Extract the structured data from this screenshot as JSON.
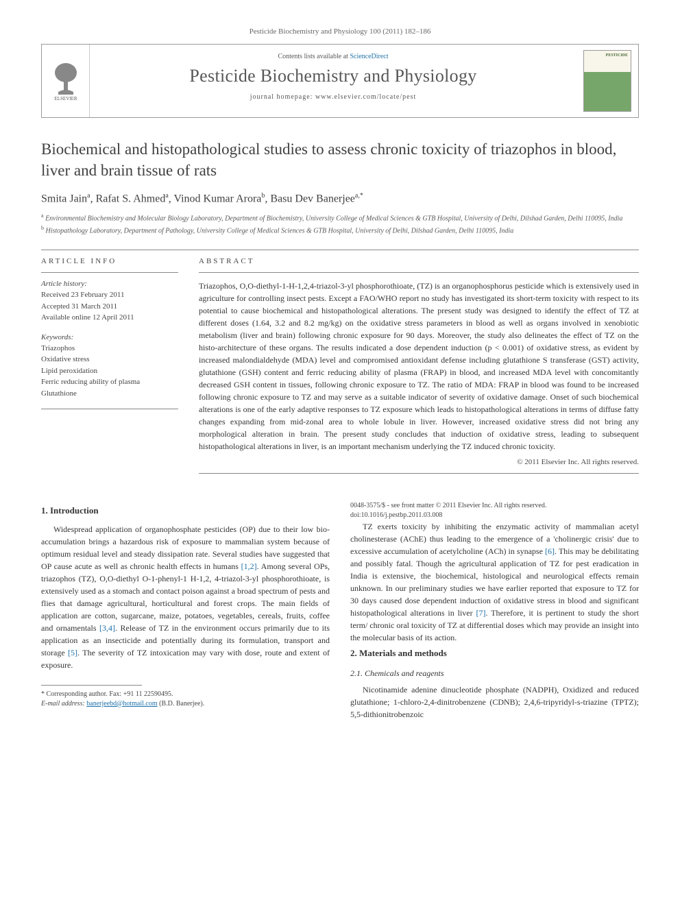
{
  "journal_ref": "Pesticide Biochemistry and Physiology 100 (2011) 182–186",
  "header": {
    "contents_prefix": "Contents lists available at ",
    "contents_link": "ScienceDirect",
    "journal_name": "Pesticide Biochemistry and Physiology",
    "homepage_prefix": "journal homepage: ",
    "homepage_url": "www.elsevier.com/locate/pest",
    "publisher_logo_color": "#e9711c",
    "cover_top_color": "#f8f5ea",
    "cover_bottom_color": "#77a66a"
  },
  "title": "Biochemical and histopathological studies to assess chronic toxicity of triazophos in blood, liver and brain tissue of rats",
  "authors_html": "Smita Jain<sup>a</sup>, Rafat S. Ahmed<sup>a</sup>, Vinod Kumar Arora<sup>b</sup>, Basu Dev Banerjee<sup>a,*</sup>",
  "affiliations": [
    {
      "sup": "a",
      "text": "Environmental Biochemistry and Molecular Biology Laboratory, Department of Biochemistry, University College of Medical Sciences & GTB Hospital, University of Delhi, Dilshad Garden, Delhi 110095, India"
    },
    {
      "sup": "b",
      "text": "Histopathology Laboratory, Department of Pathology, University College of Medical Sciences & GTB Hospital, University of Delhi, Dilshad Garden, Delhi 110095, India"
    }
  ],
  "article_info": {
    "head": "ARTICLE INFO",
    "history_head": "Article history:",
    "history": [
      "Received 23 February 2011",
      "Accepted 31 March 2011",
      "Available online 12 April 2011"
    ],
    "keywords_head": "Keywords:",
    "keywords": [
      "Triazophos",
      "Oxidative stress",
      "Lipid peroxidation",
      "Ferric reducing ability of plasma",
      "Glutathione"
    ]
  },
  "abstract": {
    "head": "ABSTRACT",
    "text": "Triazophos, O,O-diethyl-1-H-1,2,4-triazol-3-yl phosphorothioate, (TZ) is an organophosphorus pesticide which is extensively used in agriculture for controlling insect pests. Except a FAO/WHO report no study has investigated its short-term toxicity with respect to its potential to cause biochemical and histopathological alterations. The present study was designed to identify the effect of TZ at different doses (1.64, 3.2 and 8.2 mg/kg) on the oxidative stress parameters in blood as well as organs involved in xenobiotic metabolism (liver and brain) following chronic exposure for 90 days. Moreover, the study also delineates the effect of TZ on the histo-architecture of these organs. The results indicated a dose dependent induction (p < 0.001) of oxidative stress, as evident by increased malondialdehyde (MDA) level and compromised antioxidant defense including glutathione S transferase (GST) activity, glutathione (GSH) content and ferric reducing ability of plasma (FRAP) in blood, and increased MDA level with concomitantly decreased GSH content in tissues, following chronic exposure to TZ. The ratio of MDA: FRAP in blood was found to be increased following chronic exposure to TZ and may serve as a suitable indicator of severity of oxidative damage. Onset of such biochemical alterations is one of the early adaptive responses to TZ exposure which leads to histopathological alterations in terms of diffuse fatty changes expanding from mid-zonal area to whole lobule in liver. However, increased oxidative stress did not bring any morphological alteration in brain. The present study concludes that induction of oxidative stress, leading to subsequent histopathological alterations in liver, is an important mechanism underlying the TZ induced chronic toxicity.",
    "copyright": "© 2011 Elsevier Inc. All rights reserved."
  },
  "sections": {
    "intro_head": "1. Introduction",
    "intro_p1": "Widespread application of organophosphate pesticides (OP) due to their low bio-accumulation brings a hazardous risk of exposure to mammalian system because of optimum residual level and steady dissipation rate. Several studies have suggested that OP cause acute as well as chronic health effects in humans [1,2]. Among several OPs, triazophos (TZ), O,O-diethyl O-1-phenyl-1 H-1,2, 4-triazol-3-yl phosphorothioate, is extensively used as a stomach and contact poison against a broad spectrum of pests and flies that damage agricultural, horticultural and forest crops. The main fields of application are cotton, sugarcane, maize, potatoes, vegetables, cereals, fruits, coffee and ornamentals [3,4]. Release of TZ in the environment occurs primarily due to its application as an insecticide and potentially during its formulation, transport and storage [5]. The severity of TZ intoxication may vary with dose, route and extent of exposure.",
    "intro_p2": "TZ exerts toxicity by inhibiting the enzymatic activity of mammalian acetyl cholinesterase (AChE) thus leading to the emergence of a 'cholinergic crisis' due to excessive accumulation of acetylcholine (ACh) in synapse [6]. This may be debilitating and possibly fatal. Though the agricultural application of TZ for pest eradication in India is extensive, the biochemical, histological and neurological effects remain unknown. In our preliminary studies we have earlier reported that exposure to TZ for 30 days caused dose dependent induction of oxidative stress in blood and significant histopathological alterations in liver [7]. Therefore, it is pertinent to study the short term/ chronic oral toxicity of TZ at differential doses which may provide an insight into the molecular basis of its action.",
    "methods_head": "2. Materials and methods",
    "methods_sub": "2.1. Chemicals and reagents",
    "methods_p1": "Nicotinamide adenine dinucleotide phosphate (NADPH), Oxidized and reduced glutathione; 1-chloro-2,4-dinitrobenzene (CDNB); 2,4,6-tripyridyl-s-triazine (TPTZ); 5,5-dithionitrobenzoic"
  },
  "footnote": {
    "corresp": "* Corresponding author. Fax: +91 11 22590495.",
    "email_label": "E-mail address:",
    "email": "banerjeebd@hotmail.com",
    "email_name": "(B.D. Banerjee)."
  },
  "doi": {
    "line1": "0048-3575/$ - see front matter © 2011 Elsevier Inc. All rights reserved.",
    "line2": "doi:10.1016/j.pestbp.2011.03.008"
  },
  "refs": {
    "r12": "[1,2]",
    "r34": "[3,4]",
    "r5": "[5]",
    "r6": "[6]",
    "r7": "[7]"
  }
}
